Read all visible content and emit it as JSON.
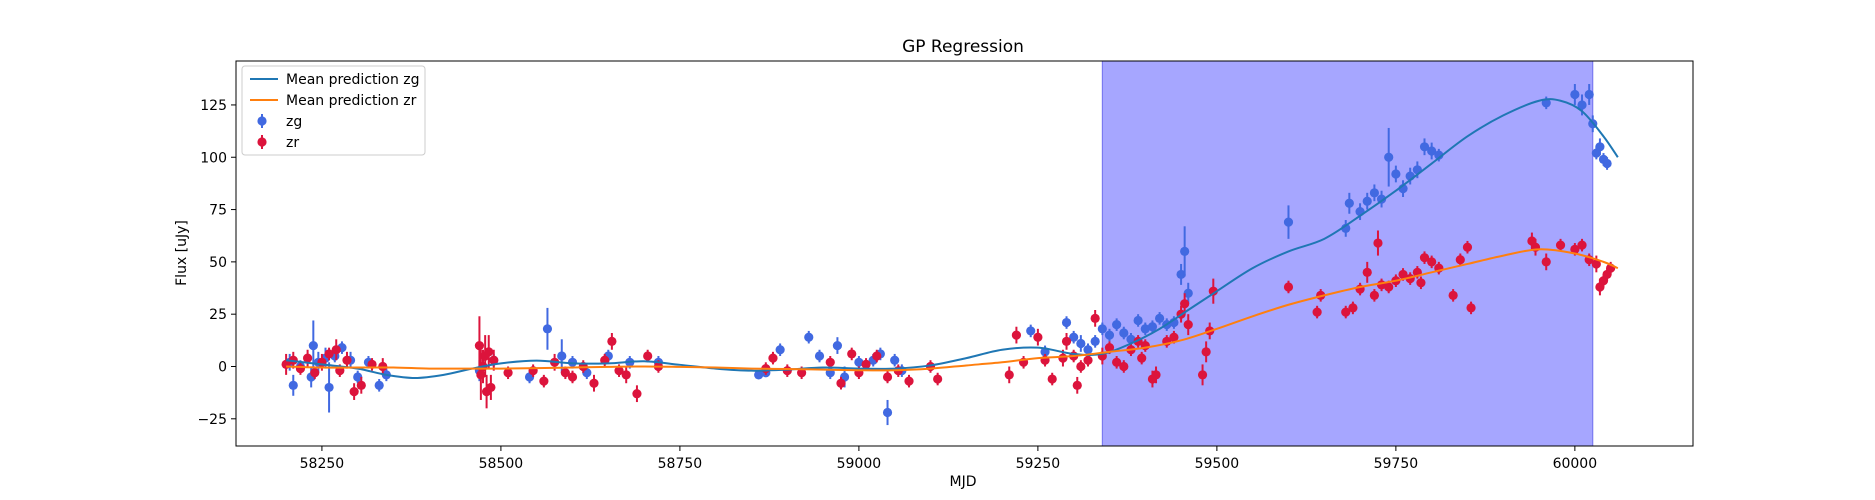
{
  "chart_data": {
    "type": "scatter",
    "title": "GP Regression",
    "xlabel": "MJD",
    "ylabel": "Flux [uJy]",
    "xlim": [
      58130,
      60165
    ],
    "ylim": [
      -38,
      146
    ],
    "xticks": [
      58250,
      58500,
      58750,
      59000,
      59250,
      59500,
      59750,
      60000
    ],
    "yticks": [
      -25,
      0,
      25,
      50,
      75,
      100,
      125
    ],
    "grid": false,
    "legend_position": "top-left",
    "shaded_region": {
      "x_start": 59340,
      "x_end": 60025,
      "color": "#a6a6ff"
    },
    "colors": {
      "zg": "#4169e1",
      "zr": "#dc143c",
      "mean_zg": "#1f77b4",
      "mean_zr": "#ff7f0e"
    },
    "series": [
      {
        "name": "Mean prediction zg",
        "kind": "line",
        "x": [
          58200,
          58250,
          58300,
          58340,
          58380,
          58420,
          58460,
          58500,
          58550,
          58600,
          58650,
          58700,
          58750,
          58800,
          58850,
          58900,
          58950,
          59000,
          59050,
          59100,
          59150,
          59200,
          59250,
          59300,
          59340,
          59380,
          59420,
          59460,
          59500,
          59550,
          59600,
          59650,
          59700,
          59750,
          59800,
          59850,
          59900,
          59950,
          59980,
          60010,
          60040,
          60060
        ],
        "y": [
          3,
          1,
          -1,
          -4,
          -5.5,
          -4,
          -1,
          1.5,
          2.8,
          1.5,
          1.5,
          2.5,
          0.8,
          -1,
          -2,
          -1.5,
          -0.5,
          -1,
          -1,
          0.5,
          4,
          8,
          9,
          6,
          6,
          11,
          18,
          27,
          36,
          47,
          55,
          61,
          72,
          84,
          97,
          110,
          120,
          127,
          127,
          122,
          110,
          100
        ]
      },
      {
        "name": "Mean prediction zr",
        "kind": "line",
        "x": [
          58200,
          58250,
          58300,
          58350,
          58400,
          58450,
          58500,
          58550,
          58600,
          58650,
          58700,
          58750,
          58800,
          58850,
          58900,
          58950,
          59000,
          59050,
          59100,
          59150,
          59200,
          59250,
          59300,
          59350,
          59400,
          59450,
          59500,
          59550,
          59600,
          59650,
          59700,
          59750,
          59800,
          59850,
          59900,
          59950,
          60000,
          60040,
          60060
        ],
        "y": [
          0,
          -0.5,
          -0.5,
          -0.5,
          -1,
          -1,
          -1,
          -0.8,
          -0.5,
          -0.2,
          0,
          -0.2,
          -0.5,
          -1,
          -1.2,
          -1.5,
          -1.8,
          -1.8,
          -1,
          0.5,
          2,
          4,
          5,
          7,
          9,
          12.5,
          18,
          24,
          29.5,
          34,
          38,
          41,
          45,
          49,
          53,
          56,
          54,
          50,
          47
        ]
      },
      {
        "name": "zg",
        "kind": "errorbar",
        "points": [
          [
            58205,
            2,
            4
          ],
          [
            58210,
            -9,
            5
          ],
          [
            58220,
            0,
            3
          ],
          [
            58235,
            -5,
            5
          ],
          [
            58238,
            10,
            12
          ],
          [
            58245,
            2,
            5
          ],
          [
            58255,
            4,
            5
          ],
          [
            58260,
            -10,
            12
          ],
          [
            58268,
            5,
            3
          ],
          [
            58278,
            9,
            3
          ],
          [
            58290,
            3,
            4
          ],
          [
            58300,
            -5,
            3
          ],
          [
            58315,
            2,
            3
          ],
          [
            58330,
            -9,
            3
          ],
          [
            58340,
            -4,
            3
          ],
          [
            58470,
            -2,
            5
          ],
          [
            58490,
            3,
            3
          ],
          [
            58540,
            -5,
            3
          ],
          [
            58565,
            18,
            10
          ],
          [
            58585,
            5,
            8
          ],
          [
            58600,
            2,
            3
          ],
          [
            58620,
            -3,
            3
          ],
          [
            58650,
            5,
            3
          ],
          [
            58680,
            2,
            3
          ],
          [
            58720,
            2,
            3
          ],
          [
            58860,
            -4,
            2
          ],
          [
            58870,
            -3,
            2
          ],
          [
            58890,
            8,
            3
          ],
          [
            58930,
            14,
            3
          ],
          [
            58945,
            5,
            3
          ],
          [
            58960,
            -3,
            3
          ],
          [
            58970,
            10,
            4
          ],
          [
            58980,
            -5,
            5
          ],
          [
            59000,
            2,
            3
          ],
          [
            59020,
            3,
            3
          ],
          [
            59030,
            6,
            3
          ],
          [
            59040,
            -22,
            6
          ],
          [
            59050,
            3,
            3
          ],
          [
            59060,
            -2,
            3
          ],
          [
            59240,
            17,
            3
          ],
          [
            59260,
            7,
            3
          ],
          [
            59290,
            21,
            3
          ],
          [
            59300,
            14,
            3
          ],
          [
            59310,
            11,
            4
          ],
          [
            59320,
            8,
            3
          ],
          [
            59330,
            12,
            3
          ],
          [
            59340,
            18,
            3
          ],
          [
            59350,
            15,
            3
          ],
          [
            59360,
            20,
            3
          ],
          [
            59370,
            16,
            3
          ],
          [
            59380,
            13,
            3
          ],
          [
            59390,
            22,
            3
          ],
          [
            59400,
            18,
            3
          ],
          [
            59410,
            19,
            3
          ],
          [
            59420,
            23,
            3
          ],
          [
            59430,
            20,
            3
          ],
          [
            59440,
            21,
            3
          ],
          [
            59450,
            44,
            5
          ],
          [
            59455,
            55,
            12
          ],
          [
            59460,
            35,
            5
          ],
          [
            59600,
            69,
            8
          ],
          [
            59680,
            66,
            4
          ],
          [
            59685,
            78,
            5
          ],
          [
            59700,
            74,
            4
          ],
          [
            59710,
            79,
            4
          ],
          [
            59720,
            83,
            4
          ],
          [
            59730,
            80,
            4
          ],
          [
            59740,
            100,
            14
          ],
          [
            59750,
            92,
            4
          ],
          [
            59760,
            85,
            4
          ],
          [
            59770,
            91,
            4
          ],
          [
            59780,
            94,
            4
          ],
          [
            59790,
            105,
            4
          ],
          [
            59800,
            103,
            4
          ],
          [
            59810,
            101,
            3
          ],
          [
            59960,
            126,
            3
          ],
          [
            60000,
            130,
            5
          ],
          [
            60010,
            125,
            5
          ],
          [
            60020,
            130,
            5
          ],
          [
            60025,
            116,
            4
          ],
          [
            60030,
            102,
            3
          ],
          [
            60035,
            105,
            4
          ],
          [
            60040,
            99,
            3
          ],
          [
            60045,
            97,
            3
          ]
        ]
      },
      {
        "name": "zr",
        "kind": "errorbar",
        "points": [
          [
            58200,
            1,
            5
          ],
          [
            58210,
            3,
            4
          ],
          [
            58220,
            -1,
            3
          ],
          [
            58230,
            4,
            4
          ],
          [
            58240,
            -3,
            3
          ],
          [
            58250,
            2,
            4
          ],
          [
            58260,
            6,
            3
          ],
          [
            58270,
            8,
            5
          ],
          [
            58275,
            -2,
            3
          ],
          [
            58285,
            3,
            4
          ],
          [
            58295,
            -12,
            4
          ],
          [
            58305,
            -9,
            4
          ],
          [
            58320,
            1,
            3
          ],
          [
            58335,
            0,
            4
          ],
          [
            58470,
            10,
            14
          ],
          [
            58472,
            -4,
            12
          ],
          [
            58475,
            0,
            8
          ],
          [
            58478,
            5,
            10
          ],
          [
            58480,
            -12,
            8
          ],
          [
            58483,
            7,
            8
          ],
          [
            58486,
            -10,
            6
          ],
          [
            58490,
            3,
            5
          ],
          [
            58510,
            -3,
            3
          ],
          [
            58545,
            -2,
            3
          ],
          [
            58560,
            -7,
            3
          ],
          [
            58575,
            2,
            4
          ],
          [
            58590,
            -3,
            3
          ],
          [
            58600,
            -5,
            3
          ],
          [
            58615,
            0,
            3
          ],
          [
            58630,
            -8,
            4
          ],
          [
            58645,
            3,
            3
          ],
          [
            58655,
            12,
            4
          ],
          [
            58665,
            -2,
            3
          ],
          [
            58675,
            -4,
            4
          ],
          [
            58690,
            -13,
            4
          ],
          [
            58705,
            5,
            3
          ],
          [
            58720,
            0,
            3
          ],
          [
            58870,
            -1,
            3
          ],
          [
            58880,
            4,
            3
          ],
          [
            58900,
            -2,
            3
          ],
          [
            58920,
            -3,
            3
          ],
          [
            58960,
            2,
            3
          ],
          [
            58975,
            -8,
            3
          ],
          [
            58990,
            6,
            3
          ],
          [
            59000,
            -3,
            3
          ],
          [
            59010,
            1,
            3
          ],
          [
            59025,
            5,
            3
          ],
          [
            59040,
            -5,
            3
          ],
          [
            59055,
            -2,
            3
          ],
          [
            59070,
            -7,
            3
          ],
          [
            59100,
            0,
            3
          ],
          [
            59110,
            -6,
            3
          ],
          [
            59210,
            -4,
            4
          ],
          [
            59220,
            15,
            4
          ],
          [
            59230,
            2,
            3
          ],
          [
            59250,
            14,
            4
          ],
          [
            59260,
            3,
            3
          ],
          [
            59270,
            -6,
            3
          ],
          [
            59285,
            4,
            4
          ],
          [
            59290,
            12,
            4
          ],
          [
            59300,
            5,
            3
          ],
          [
            59305,
            -9,
            4
          ],
          [
            59310,
            0,
            3
          ],
          [
            59320,
            3,
            3
          ],
          [
            59330,
            23,
            4
          ],
          [
            59340,
            5,
            4
          ],
          [
            59350,
            9,
            3
          ],
          [
            59360,
            2,
            3
          ],
          [
            59370,
            0,
            3
          ],
          [
            59380,
            8,
            3
          ],
          [
            59390,
            12,
            3
          ],
          [
            59395,
            4,
            3
          ],
          [
            59400,
            10,
            3
          ],
          [
            59410,
            -6,
            4
          ],
          [
            59415,
            -4,
            4
          ],
          [
            59430,
            12,
            3
          ],
          [
            59440,
            14,
            3
          ],
          [
            59450,
            25,
            4
          ],
          [
            59455,
            30,
            5
          ],
          [
            59460,
            20,
            5
          ],
          [
            59480,
            -4,
            5
          ],
          [
            59485,
            7,
            5
          ],
          [
            59490,
            17,
            4
          ],
          [
            59495,
            36,
            6
          ],
          [
            59600,
            38,
            3
          ],
          [
            59640,
            26,
            3
          ],
          [
            59645,
            34,
            3
          ],
          [
            59680,
            26,
            3
          ],
          [
            59690,
            28,
            3
          ],
          [
            59700,
            37,
            3
          ],
          [
            59710,
            45,
            5
          ],
          [
            59720,
            34,
            3
          ],
          [
            59725,
            59,
            6
          ],
          [
            59730,
            39,
            3
          ],
          [
            59740,
            38,
            3
          ],
          [
            59750,
            41,
            3
          ],
          [
            59760,
            44,
            3
          ],
          [
            59770,
            42,
            3
          ],
          [
            59780,
            45,
            3
          ],
          [
            59785,
            40,
            3
          ],
          [
            59790,
            52,
            3
          ],
          [
            59800,
            50,
            3
          ],
          [
            59810,
            47,
            3
          ],
          [
            59830,
            34,
            3
          ],
          [
            59840,
            51,
            3
          ],
          [
            59850,
            57,
            3
          ],
          [
            59855,
            28,
            3
          ],
          [
            59940,
            60,
            4
          ],
          [
            59945,
            57,
            4
          ],
          [
            59960,
            50,
            4
          ],
          [
            59980,
            58,
            3
          ],
          [
            60000,
            56,
            3
          ],
          [
            60010,
            58,
            3
          ],
          [
            60020,
            51,
            3
          ],
          [
            60030,
            49,
            4
          ],
          [
            60035,
            38,
            4
          ],
          [
            60040,
            41,
            3
          ],
          [
            60045,
            44,
            3
          ],
          [
            60050,
            47,
            3
          ]
        ]
      }
    ]
  }
}
